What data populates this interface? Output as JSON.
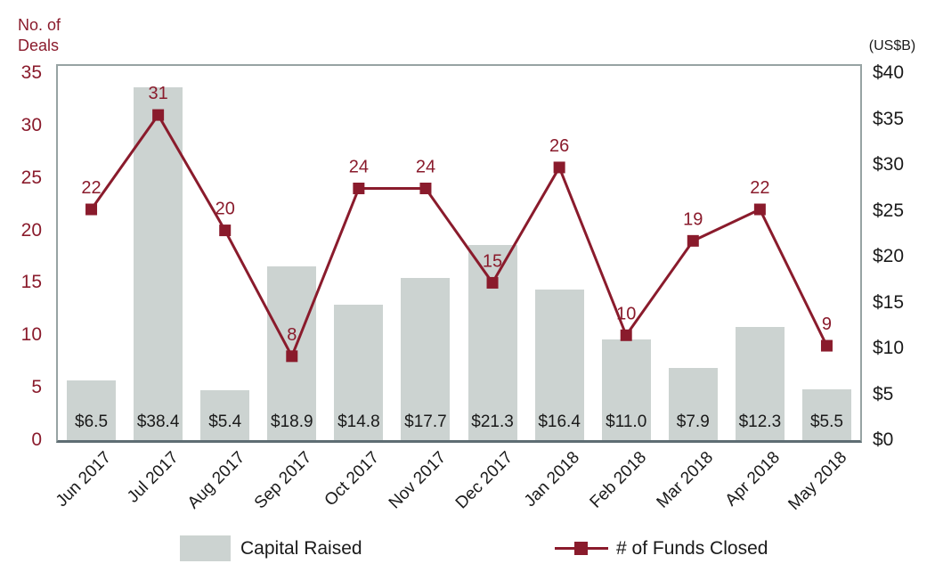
{
  "colors": {
    "maroon": "#8A1B2C",
    "bar_fill": "#CCD3D1",
    "plot_border": "#97A3A3",
    "axis_bottom_line": "#5E6D73",
    "text_black": "#1A1A1A"
  },
  "chart_data": {
    "type": "combo-bar-line",
    "categories": [
      "Jun 2017",
      "Jul 2017",
      "Aug 2017",
      "Sep 2017",
      "Oct 2017",
      "Nov 2017",
      "Dec 2017",
      "Jan 2018",
      "Feb 2018",
      "Mar 2018",
      "Apr 2018",
      "May 2018"
    ],
    "series": [
      {
        "name": "Capital Raised",
        "type": "bar",
        "axis": "right",
        "values": [
          6.5,
          38.4,
          5.4,
          18.9,
          14.8,
          17.7,
          21.3,
          16.4,
          11.0,
          7.9,
          12.3,
          5.5
        ],
        "value_labels": [
          "$6.5",
          "$38.4",
          "$5.4",
          "$18.9",
          "$14.8",
          "$17.7",
          "$21.3",
          "$16.4",
          "$11.0",
          "$7.9",
          "$12.3",
          "$5.5"
        ]
      },
      {
        "name": "# of Funds Closed",
        "type": "line",
        "axis": "left",
        "values": [
          22,
          31,
          20,
          8,
          24,
          24,
          15,
          26,
          10,
          19,
          22,
          9
        ],
        "point_labels": [
          "22",
          "31",
          "20",
          "8",
          "24",
          "24",
          "15",
          "26",
          "10",
          "19",
          "22",
          "9"
        ]
      }
    ],
    "left_axis": {
      "title": "No. of\nDeals",
      "min": 0,
      "max": 35,
      "ticks": [
        {
          "value": 35,
          "label": "35"
        },
        {
          "value": 30,
          "label": "30"
        },
        {
          "value": 25,
          "label": "25"
        },
        {
          "value": 20,
          "label": "20"
        },
        {
          "value": 15,
          "label": "15"
        },
        {
          "value": 10,
          "label": "10"
        },
        {
          "value": 5,
          "label": "5"
        },
        {
          "value": 0,
          "label": "0"
        }
      ]
    },
    "right_axis": {
      "title": "(US$B)",
      "min": 0,
      "max": 40,
      "ticks": [
        {
          "value": 40,
          "label": "$40"
        },
        {
          "value": 35,
          "label": "$35"
        },
        {
          "value": 30,
          "label": "$30"
        },
        {
          "value": 25,
          "label": "$25"
        },
        {
          "value": 20,
          "label": "$20"
        },
        {
          "value": 15,
          "label": "$15"
        },
        {
          "value": 10,
          "label": "$10"
        },
        {
          "value": 5,
          "label": "$5"
        },
        {
          "value": 0,
          "label": "$0"
        }
      ]
    },
    "grid": false,
    "legend_position": "bottom"
  }
}
